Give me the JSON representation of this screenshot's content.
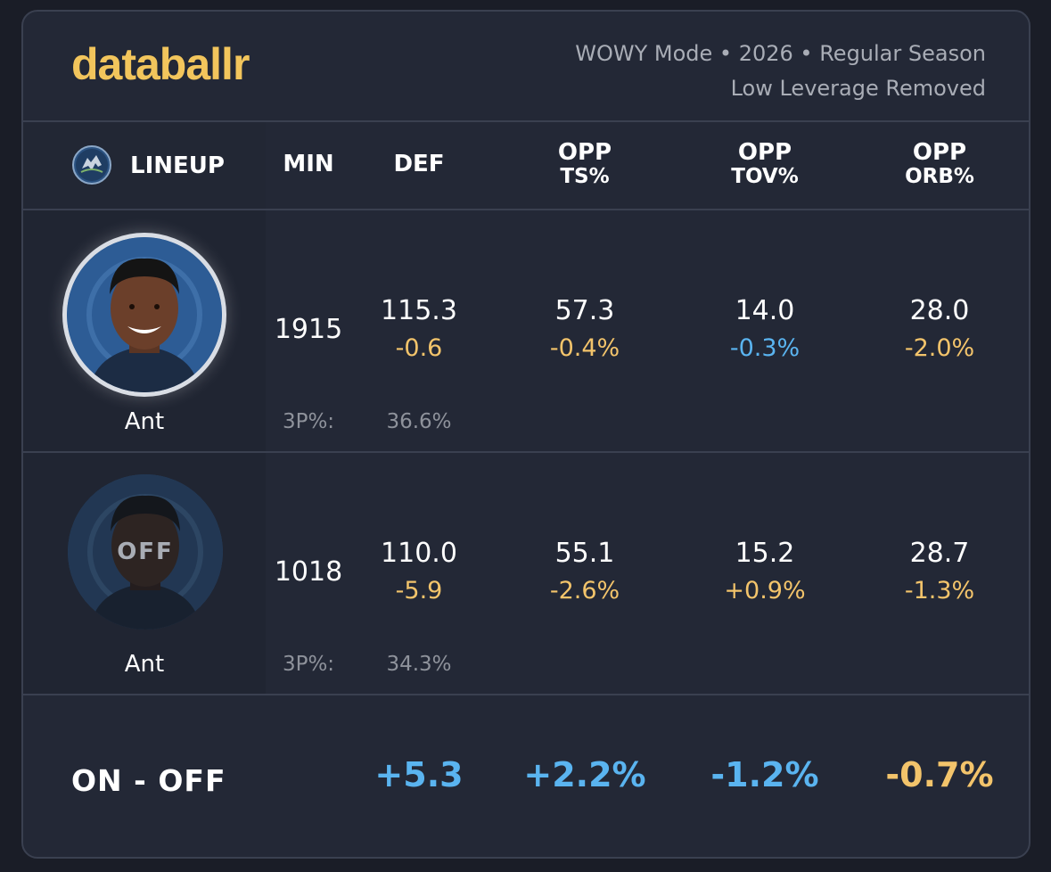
{
  "brand": "databallr",
  "meta": {
    "line1": "WOWY Mode • 2026 • Regular Season",
    "line2": "Low Leverage Removed"
  },
  "colors": {
    "background": "#1a1d27",
    "card": "#232836",
    "accent_yellow": "#f2c55c",
    "positive_blue": "#5ab4f0",
    "negative_yellow": "#f3c46b"
  },
  "header": {
    "team_icon": "timberwolves-logo-icon",
    "lineup": "LINEUP",
    "min": "MIN",
    "def": "DEF",
    "opp_ts_1": "OPP",
    "opp_ts_2": "TS%",
    "opp_tov_1": "OPP",
    "opp_tov_2": "TOV%",
    "opp_orb_1": "OPP",
    "opp_orb_2": "ORB%"
  },
  "rows": [
    {
      "status": "on",
      "player": "Ant",
      "min": "1915",
      "def": "115.3",
      "def_diff": "-0.6",
      "ts": "57.3",
      "ts_diff": "-0.4%",
      "tov": "14.0",
      "tov_diff": "-0.3%",
      "orb": "28.0",
      "orb_diff": "-2.0%",
      "three_label": "3P%:",
      "three_val": "36.6%"
    },
    {
      "status": "off",
      "badge": "OFF",
      "player": "Ant",
      "min": "1018",
      "def": "110.0",
      "def_diff": "-5.9",
      "ts": "55.1",
      "ts_diff": "-2.6%",
      "tov": "15.2",
      "tov_diff": "+0.9%",
      "orb": "28.7",
      "orb_diff": "-1.3%",
      "three_label": "3P%:",
      "three_val": "34.3%"
    }
  ],
  "summary": {
    "label": "ON - OFF",
    "def": "+5.3",
    "ts": "+2.2%",
    "tov": "-1.2%",
    "orb": "-0.7%"
  }
}
